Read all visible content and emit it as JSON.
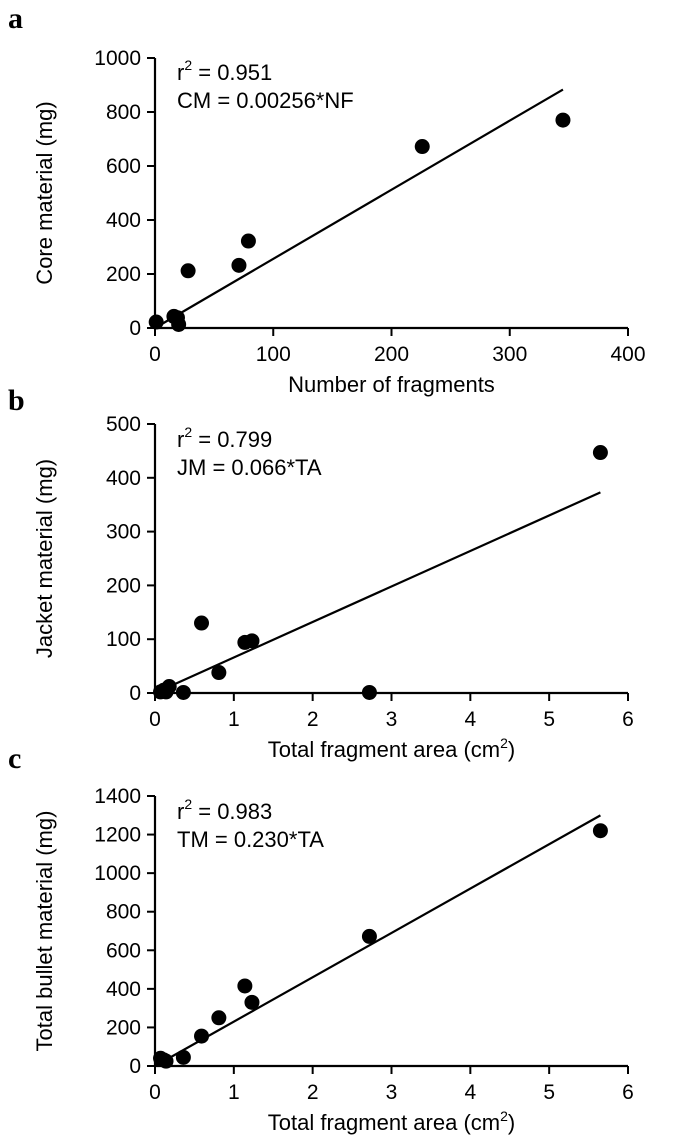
{
  "chart_data": [
    {
      "panel": "a",
      "type": "scatter",
      "xlabel": "Number of fragments",
      "ylabel": "Core material (mg)",
      "xlim": [
        0,
        400
      ],
      "ylim": [
        0,
        1000
      ],
      "xticks": [
        0,
        100,
        200,
        300,
        400
      ],
      "yticks": [
        0,
        200,
        400,
        600,
        800,
        1000
      ],
      "annotation": {
        "r2_label": "r",
        "r2_sup": "2",
        "r2_value": " = 0.951",
        "equation": "CM = 0.00256*NF"
      },
      "fit": {
        "slope": 2.56,
        "x_range": [
          0,
          345
        ]
      },
      "x": [
        1,
        16,
        19,
        20,
        28,
        71,
        79,
        226,
        345
      ],
      "y": [
        22,
        43,
        38,
        13,
        212,
        232,
        322,
        672,
        770
      ]
    },
    {
      "panel": "b",
      "type": "scatter",
      "xlabel": "Total fragment area (cm",
      "xlabel_sup": "2",
      "xlabel_end": ")",
      "ylabel": "Jacket material (mg)",
      "xlim": [
        0,
        6
      ],
      "ylim": [
        0,
        500
      ],
      "xticks": [
        0,
        1,
        2,
        3,
        4,
        5,
        6
      ],
      "yticks": [
        0,
        100,
        200,
        300,
        400,
        500
      ],
      "annotation": {
        "r2_label": "r",
        "r2_sup": "2",
        "r2_value": " = 0.799",
        "equation": "JM = 0.066*TA"
      },
      "fit": {
        "slope": 66,
        "x_range": [
          0,
          5.65
        ]
      },
      "x": [
        0.07,
        0.11,
        0.14,
        0.18,
        0.36,
        0.59,
        0.81,
        1.14,
        1.23,
        2.72,
        5.65
      ],
      "y": [
        2,
        5,
        2,
        12,
        1,
        130,
        38,
        94,
        97,
        1,
        447
      ]
    },
    {
      "panel": "c",
      "type": "scatter",
      "xlabel": "Total fragment area (cm",
      "xlabel_sup": "2",
      "xlabel_end": ")",
      "ylabel": "Total bullet material (mg)",
      "xlim": [
        0,
        6
      ],
      "ylim": [
        0,
        1400
      ],
      "xticks": [
        0,
        1,
        2,
        3,
        4,
        5,
        6
      ],
      "yticks": [
        0,
        200,
        400,
        600,
        800,
        1000,
        1200,
        1400
      ],
      "annotation": {
        "r2_label": "r",
        "r2_sup": "2",
        "r2_value": " = 0.983",
        "equation": "TM = 0.230*TA"
      },
      "fit": {
        "slope": 230,
        "x_range": [
          0,
          5.65
        ]
      },
      "x": [
        0.07,
        0.11,
        0.14,
        0.36,
        0.59,
        0.81,
        1.14,
        1.23,
        2.72,
        5.65
      ],
      "y": [
        40,
        32,
        25,
        45,
        155,
        250,
        415,
        330,
        672,
        1220
      ]
    }
  ]
}
